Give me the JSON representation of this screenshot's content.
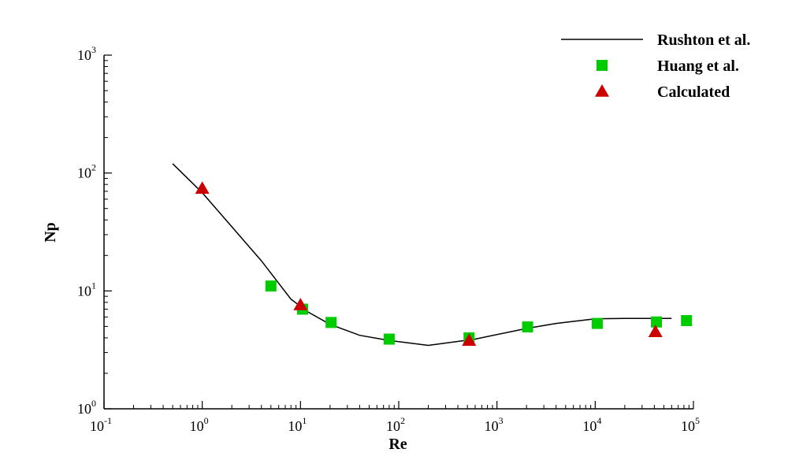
{
  "chart_data": {
    "type": "scatter",
    "title": "",
    "xlabel": "Re",
    "ylabel": "Np",
    "xscale": "log",
    "yscale": "log",
    "xlim": [
      0.1,
      100000
    ],
    "ylim": [
      1,
      1000
    ],
    "grid": false,
    "legend_position": "top-right",
    "x_ticks": [
      {
        "base": "10",
        "exp": "-1",
        "value": 0.1
      },
      {
        "base": "10",
        "exp": "0",
        "value": 1
      },
      {
        "base": "10",
        "exp": "1",
        "value": 10
      },
      {
        "base": "10",
        "exp": "2",
        "value": 100
      },
      {
        "base": "10",
        "exp": "3",
        "value": 1000
      },
      {
        "base": "10",
        "exp": "4",
        "value": 10000
      },
      {
        "base": "10",
        "exp": "5",
        "value": 100000
      }
    ],
    "y_ticks": [
      {
        "base": "10",
        "exp": "0",
        "value": 1
      },
      {
        "base": "10",
        "exp": "1",
        "value": 10
      },
      {
        "base": "10",
        "exp": "2",
        "value": 100
      },
      {
        "base": "10",
        "exp": "3",
        "value": 1000
      }
    ],
    "series": [
      {
        "name": "Rushton et al.",
        "kind": "line",
        "color": "#000000",
        "x": [
          0.5,
          1,
          2,
          4,
          8,
          12,
          20,
          40,
          80,
          200,
          600,
          2000,
          4000,
          10000,
          20000,
          60000
        ],
        "y": [
          120,
          68,
          35,
          18,
          8.5,
          6.6,
          5.2,
          4.2,
          3.8,
          3.45,
          3.9,
          4.8,
          5.3,
          5.8,
          5.85,
          5.85
        ]
      },
      {
        "name": "Huang et al.",
        "kind": "square",
        "color": "#00cc00",
        "x": [
          5,
          10.5,
          20.5,
          80,
          520,
          2050,
          10500,
          42000,
          85000
        ],
        "y": [
          11,
          7,
          5.4,
          3.9,
          4.0,
          4.95,
          5.3,
          5.45,
          5.6
        ]
      },
      {
        "name": "Calculated",
        "kind": "triangle",
        "color": "#cc0000",
        "x": [
          1,
          10,
          520,
          41000
        ],
        "y": [
          74,
          7.6,
          3.8,
          4.5
        ]
      }
    ]
  }
}
